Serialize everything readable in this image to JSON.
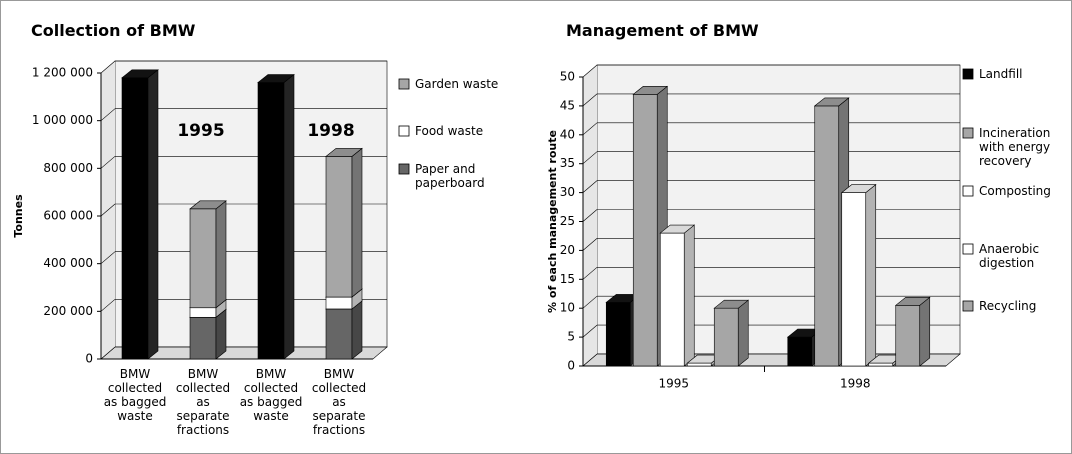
{
  "chart_data": [
    {
      "type": "bar",
      "stacked": true,
      "title": "Collection of BMW",
      "ylabel": "Tonnes",
      "categories": [
        "BMW collected as bagged waste",
        "BMW collected as separate fractions",
        "BMW collected as bagged waste",
        "BMW collected as separate fractions"
      ],
      "annotations": [
        "1995",
        "1998"
      ],
      "series": [
        {
          "color": "#000000",
          "values": [
            1180000,
            null,
            1160000,
            null
          ]
        },
        {
          "name": "Paper and paperboard",
          "color": "#666666",
          "values": [
            null,
            175000,
            null,
            210000
          ]
        },
        {
          "name": "Food waste",
          "color": "#ffffff",
          "values": [
            null,
            40000,
            null,
            50000
          ]
        },
        {
          "name": "Garden waste",
          "color": "#a6a6a6",
          "values": [
            null,
            415000,
            null,
            590000
          ]
        }
      ],
      "ylim": [
        0,
        1200000
      ],
      "yticks": [
        {
          "value": 0,
          "label": "0"
        },
        {
          "value": 200000,
          "label": "200 000"
        },
        {
          "value": 400000,
          "label": "400 000"
        },
        {
          "value": 600000,
          "label": "600 000"
        },
        {
          "value": 800000,
          "label": "800 000"
        },
        {
          "value": 1000000,
          "label": "1 000 000"
        },
        {
          "value": 1200000,
          "label": "1 200 000"
        }
      ],
      "grid": true
    },
    {
      "type": "bar",
      "stacked": false,
      "title": "Management of BMW",
      "ylabel": "% of each management route",
      "categories": [
        "1995",
        "1998"
      ],
      "series": [
        {
          "name": "Landfill",
          "color": "#000000",
          "values": [
            11,
            5
          ]
        },
        {
          "name": "Incineration with energy recovery",
          "color": "#a6a6a6",
          "values": [
            47,
            45
          ]
        },
        {
          "name": "Composting",
          "color": "#ffffff",
          "values": [
            23,
            30
          ]
        },
        {
          "name": "Anaerobic digestion",
          "color": "#ffffff",
          "values": [
            0.5,
            0.5
          ]
        },
        {
          "name": "Recycling",
          "color": "#a6a6a6",
          "values": [
            10,
            10.5
          ]
        }
      ],
      "ylim": [
        0,
        50
      ],
      "yticks": [
        0,
        5,
        10,
        15,
        20,
        25,
        30,
        35,
        40,
        45,
        50
      ],
      "grid": true
    }
  ]
}
